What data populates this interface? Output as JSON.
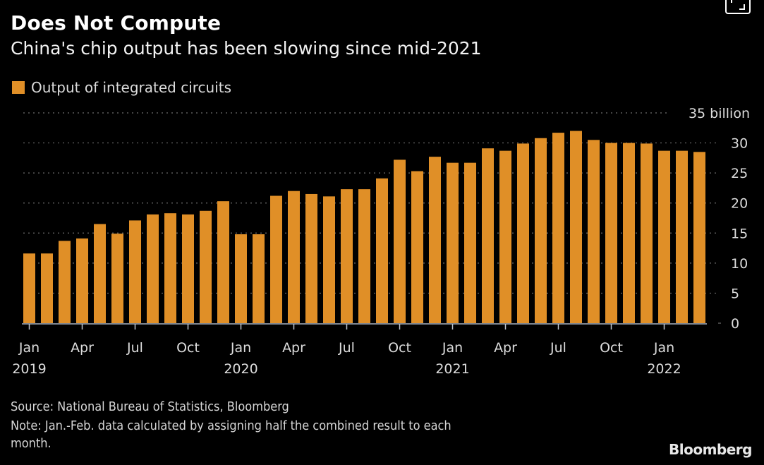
{
  "header": {
    "title": "Does Not Compute",
    "subtitle": "China's chip output has been slowing since mid-2021"
  },
  "legend": {
    "label": "Output of integrated circuits",
    "color": "#e08f27"
  },
  "footer": {
    "source": "Source: National Bureau of Statistics, Bloomberg",
    "note_line1": "Note: Jan.-Feb. data calculated by assigning half the combined result to each",
    "note_line2": "month.",
    "logo": "Bloomberg"
  },
  "icons": {
    "expand": "expand-icon"
  },
  "chart_data": {
    "type": "bar",
    "title": "Does Not Compute",
    "subtitle": "China's chip output has been slowing since mid-2021",
    "xlabel": "",
    "ylabel": "",
    "unit_label": "35 billion",
    "ylim": [
      0,
      35
    ],
    "yticks": [
      0,
      5,
      10,
      15,
      20,
      25,
      30,
      35
    ],
    "ytick_labels": [
      "0",
      "5",
      "10",
      "15",
      "20",
      "25",
      "30",
      "35 billion"
    ],
    "grid": true,
    "legend_position": "top-left",
    "bar_color": "#e08f27",
    "categories": [
      "2019-01",
      "2019-02",
      "2019-03",
      "2019-04",
      "2019-05",
      "2019-06",
      "2019-07",
      "2019-08",
      "2019-09",
      "2019-10",
      "2019-11",
      "2019-12",
      "2020-01",
      "2020-02",
      "2020-03",
      "2020-04",
      "2020-05",
      "2020-06",
      "2020-07",
      "2020-08",
      "2020-09",
      "2020-10",
      "2020-11",
      "2020-12",
      "2021-01",
      "2021-02",
      "2021-03",
      "2021-04",
      "2021-05",
      "2021-06",
      "2021-07",
      "2021-08",
      "2021-09",
      "2021-10",
      "2021-11",
      "2021-12",
      "2022-01",
      "2022-02",
      "2022-03"
    ],
    "series": [
      {
        "name": "Output of integrated circuits",
        "values": [
          11.6,
          11.6,
          13.7,
          14.1,
          16.5,
          14.9,
          17.1,
          18.1,
          18.3,
          18.1,
          18.7,
          20.3,
          14.8,
          14.8,
          21.2,
          22.0,
          21.5,
          21.1,
          22.3,
          22.3,
          24.1,
          27.2,
          25.3,
          27.7,
          26.7,
          26.7,
          29.1,
          28.7,
          29.9,
          30.8,
          31.7,
          32.0,
          30.5,
          30.0,
          30.0,
          29.9,
          28.7,
          28.7,
          28.5
        ]
      }
    ],
    "xticks": [
      {
        "index": 0,
        "label": "Jan",
        "year": "2019"
      },
      {
        "index": 3,
        "label": "Apr",
        "year": ""
      },
      {
        "index": 6,
        "label": "Jul",
        "year": ""
      },
      {
        "index": 9,
        "label": "Oct",
        "year": ""
      },
      {
        "index": 12,
        "label": "Jan",
        "year": "2020"
      },
      {
        "index": 15,
        "label": "Apr",
        "year": ""
      },
      {
        "index": 18,
        "label": "Jul",
        "year": ""
      },
      {
        "index": 21,
        "label": "Oct",
        "year": ""
      },
      {
        "index": 24,
        "label": "Jan",
        "year": "2021"
      },
      {
        "index": 27,
        "label": "Apr",
        "year": ""
      },
      {
        "index": 30,
        "label": "Jul",
        "year": ""
      },
      {
        "index": 33,
        "label": "Oct",
        "year": ""
      },
      {
        "index": 36,
        "label": "Jan",
        "year": "2022"
      }
    ]
  }
}
